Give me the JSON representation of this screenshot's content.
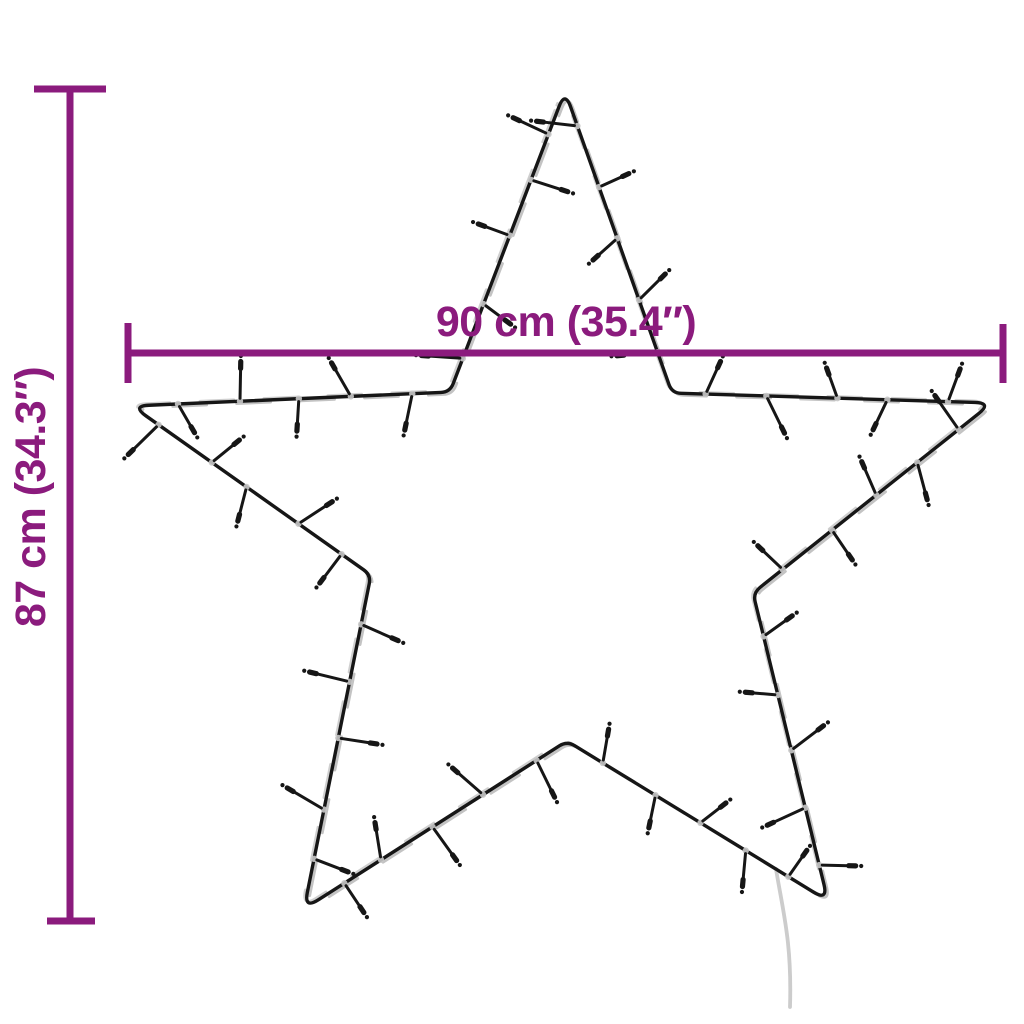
{
  "colors": {
    "accent": "#8b1b7d",
    "wire": "#161616",
    "strand": "#c3c3c3",
    "cord": "#cccccc"
  },
  "dimensions": {
    "width": {
      "label": "90 cm (35.4″)",
      "cm": 90,
      "inches": 35.4
    },
    "height": {
      "label": "87 cm (34.3″)",
      "cm": 87,
      "inches": 34.3
    }
  },
  "figure": {
    "name": "star-string-light-silhouette",
    "points": 5,
    "bulbs_per_edge": 5
  }
}
